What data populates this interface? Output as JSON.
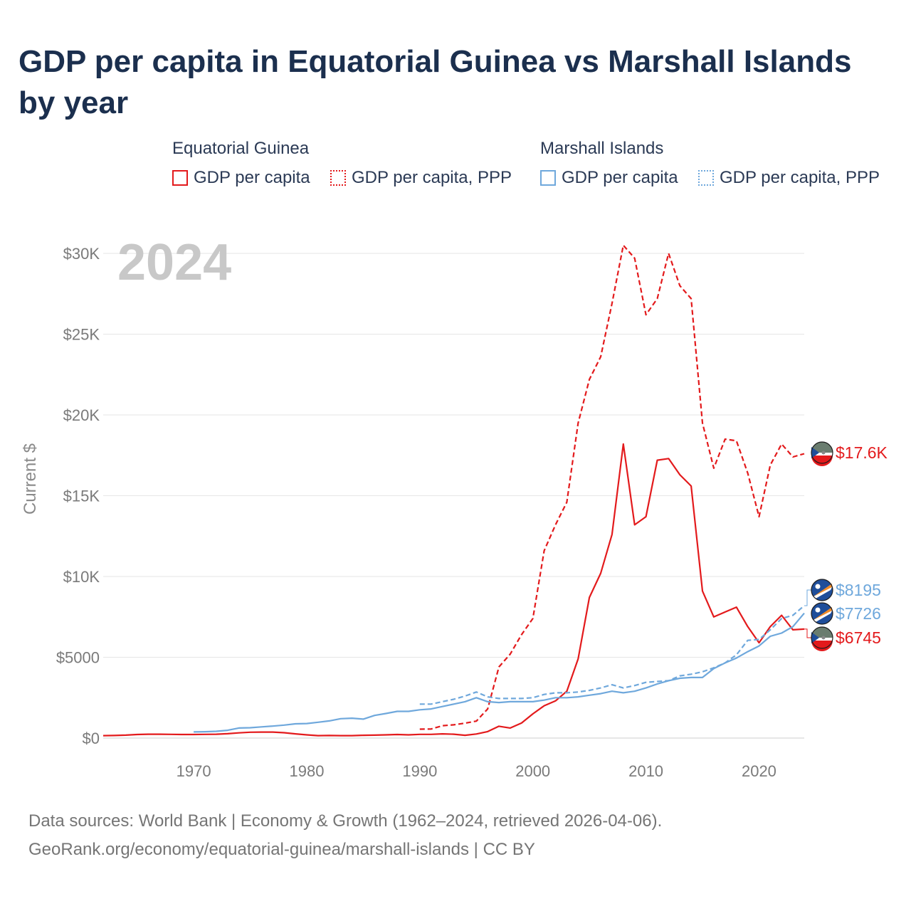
{
  "title": "GDP per capita in Equatorial Guinea vs Marshall Islands by year",
  "legend": {
    "groups": [
      {
        "name": "Equatorial Guinea",
        "items": [
          {
            "label": "GDP per capita",
            "color": "#e31a1c",
            "style": "solid"
          },
          {
            "label": "GDP per capita, PPP",
            "color": "#e31a1c",
            "style": "dotted"
          }
        ]
      },
      {
        "name": "Marshall Islands",
        "items": [
          {
            "label": "GDP per capita",
            "color": "#6fa8dc",
            "style": "solid"
          },
          {
            "label": "GDP per capita, PPP",
            "color": "#6fa8dc",
            "style": "dotted"
          }
        ]
      }
    ]
  },
  "year_watermark": "2024",
  "footer": {
    "line1": "Data sources: World Bank | Economy & Growth (1962–2024, retrieved 2026-04-06).",
    "line2": "GeoRank.org/economy/equatorial-guinea/marshall-islands | CC BY"
  },
  "chart_data": {
    "type": "line",
    "ylabel": "Current $",
    "xlabel": "",
    "xlim": [
      1962,
      2024
    ],
    "ylim": [
      0,
      31000
    ],
    "yticks": [
      0,
      5000,
      10000,
      15000,
      20000,
      25000,
      30000
    ],
    "ytick_labels": [
      "$0",
      "$5000",
      "$10K",
      "$15K",
      "$20K",
      "$25K",
      "$30K"
    ],
    "xticks": [
      1970,
      1980,
      1990,
      2000,
      2010,
      2020
    ],
    "xtick_labels": [
      "1970",
      "1980",
      "1990",
      "2000",
      "2010",
      "2020"
    ],
    "grid": true,
    "series": [
      {
        "name": "Equatorial Guinea GDP per capita",
        "color": "#e31a1c",
        "style": "solid",
        "end_label": "$6745",
        "points": [
          [
            1962,
            150
          ],
          [
            1963,
            160
          ],
          [
            1964,
            180
          ],
          [
            1965,
            220
          ],
          [
            1966,
            240
          ],
          [
            1967,
            240
          ],
          [
            1968,
            230
          ],
          [
            1969,
            220
          ],
          [
            1970,
            220
          ],
          [
            1971,
            230
          ],
          [
            1972,
            240
          ],
          [
            1973,
            270
          ],
          [
            1974,
            320
          ],
          [
            1975,
            360
          ],
          [
            1976,
            370
          ],
          [
            1977,
            370
          ],
          [
            1978,
            330
          ],
          [
            1979,
            260
          ],
          [
            1980,
            200
          ],
          [
            1981,
            150
          ],
          [
            1982,
            160
          ],
          [
            1983,
            150
          ],
          [
            1984,
            150
          ],
          [
            1985,
            170
          ],
          [
            1986,
            180
          ],
          [
            1987,
            200
          ],
          [
            1988,
            220
          ],
          [
            1989,
            200
          ],
          [
            1990,
            230
          ],
          [
            1991,
            230
          ],
          [
            1992,
            260
          ],
          [
            1993,
            240
          ],
          [
            1994,
            170
          ],
          [
            1995,
            250
          ],
          [
            1996,
            400
          ],
          [
            1997,
            730
          ],
          [
            1998,
            620
          ],
          [
            1999,
            930
          ],
          [
            2000,
            1500
          ],
          [
            2001,
            2000
          ],
          [
            2002,
            2300
          ],
          [
            2003,
            2900
          ],
          [
            2004,
            4900
          ],
          [
            2005,
            8700
          ],
          [
            2006,
            10200
          ],
          [
            2007,
            12600
          ],
          [
            2008,
            18200
          ],
          [
            2009,
            13200
          ],
          [
            2010,
            13700
          ],
          [
            2011,
            17200
          ],
          [
            2012,
            17300
          ],
          [
            2013,
            16300
          ],
          [
            2014,
            15600
          ],
          [
            2015,
            9100
          ],
          [
            2016,
            7500
          ],
          [
            2017,
            7800
          ],
          [
            2018,
            8100
          ],
          [
            2019,
            6900
          ],
          [
            2020,
            5900
          ],
          [
            2021,
            6900
          ],
          [
            2022,
            7600
          ],
          [
            2023,
            6700
          ],
          [
            2024,
            6745
          ]
        ]
      },
      {
        "name": "Equatorial Guinea GDP per capita, PPP",
        "color": "#e31a1c",
        "style": "dashed",
        "end_label": "$17.6K",
        "points": [
          [
            1990,
            550
          ],
          [
            1991,
            560
          ],
          [
            1992,
            760
          ],
          [
            1993,
            820
          ],
          [
            1994,
            920
          ],
          [
            1995,
            1050
          ],
          [
            1996,
            1800
          ],
          [
            1997,
            4400
          ],
          [
            1998,
            5200
          ],
          [
            1999,
            6400
          ],
          [
            2000,
            7400
          ],
          [
            2001,
            11600
          ],
          [
            2002,
            13200
          ],
          [
            2003,
            14600
          ],
          [
            2004,
            19500
          ],
          [
            2005,
            22200
          ],
          [
            2006,
            23600
          ],
          [
            2007,
            26900
          ],
          [
            2008,
            30500
          ],
          [
            2009,
            29700
          ],
          [
            2010,
            26200
          ],
          [
            2011,
            27200
          ],
          [
            2012,
            30000
          ],
          [
            2013,
            28000
          ],
          [
            2014,
            27200
          ],
          [
            2015,
            19500
          ],
          [
            2016,
            16700
          ],
          [
            2017,
            18500
          ],
          [
            2018,
            18400
          ],
          [
            2019,
            16400
          ],
          [
            2020,
            13700
          ],
          [
            2021,
            16900
          ],
          [
            2022,
            18200
          ],
          [
            2023,
            17400
          ],
          [
            2024,
            17600
          ]
        ]
      },
      {
        "name": "Marshall Islands GDP per capita",
        "color": "#6fa8dc",
        "style": "solid",
        "end_label": "$7726",
        "points": [
          [
            1970,
            380
          ],
          [
            1971,
            390
          ],
          [
            1972,
            420
          ],
          [
            1973,
            480
          ],
          [
            1974,
            620
          ],
          [
            1975,
            640
          ],
          [
            1976,
            690
          ],
          [
            1977,
            740
          ],
          [
            1978,
            800
          ],
          [
            1979,
            880
          ],
          [
            1980,
            900
          ],
          [
            1981,
            980
          ],
          [
            1982,
            1060
          ],
          [
            1983,
            1200
          ],
          [
            1984,
            1230
          ],
          [
            1985,
            1170
          ],
          [
            1986,
            1400
          ],
          [
            1987,
            1520
          ],
          [
            1988,
            1650
          ],
          [
            1989,
            1650
          ],
          [
            1990,
            1750
          ],
          [
            1991,
            1800
          ],
          [
            1992,
            1950
          ],
          [
            1993,
            2100
          ],
          [
            1994,
            2250
          ],
          [
            1995,
            2500
          ],
          [
            1996,
            2250
          ],
          [
            1997,
            2200
          ],
          [
            1998,
            2250
          ],
          [
            1999,
            2250
          ],
          [
            2000,
            2250
          ],
          [
            2001,
            2350
          ],
          [
            2002,
            2500
          ],
          [
            2003,
            2500
          ],
          [
            2004,
            2550
          ],
          [
            2005,
            2650
          ],
          [
            2006,
            2750
          ],
          [
            2007,
            2900
          ],
          [
            2008,
            2800
          ],
          [
            2009,
            2900
          ],
          [
            2010,
            3100
          ],
          [
            2011,
            3350
          ],
          [
            2012,
            3550
          ],
          [
            2013,
            3700
          ],
          [
            2014,
            3750
          ],
          [
            2015,
            3750
          ],
          [
            2016,
            4300
          ],
          [
            2017,
            4650
          ],
          [
            2018,
            4950
          ],
          [
            2019,
            5350
          ],
          [
            2020,
            5700
          ],
          [
            2021,
            6300
          ],
          [
            2022,
            6500
          ],
          [
            2023,
            6900
          ],
          [
            2024,
            7726
          ]
        ]
      },
      {
        "name": "Marshall Islands GDP per capita, PPP",
        "color": "#6fa8dc",
        "style": "dashed",
        "end_label": "$8195",
        "points": [
          [
            1990,
            2100
          ],
          [
            1991,
            2100
          ],
          [
            1992,
            2250
          ],
          [
            1993,
            2400
          ],
          [
            1994,
            2600
          ],
          [
            1995,
            2850
          ],
          [
            1996,
            2550
          ],
          [
            1997,
            2450
          ],
          [
            1998,
            2450
          ],
          [
            1999,
            2450
          ],
          [
            2000,
            2500
          ],
          [
            2001,
            2700
          ],
          [
            2002,
            2800
          ],
          [
            2003,
            2800
          ],
          [
            2004,
            2850
          ],
          [
            2005,
            2950
          ],
          [
            2006,
            3100
          ],
          [
            2007,
            3300
          ],
          [
            2008,
            3100
          ],
          [
            2009,
            3250
          ],
          [
            2010,
            3450
          ],
          [
            2011,
            3500
          ],
          [
            2012,
            3550
          ],
          [
            2013,
            3850
          ],
          [
            2014,
            3950
          ],
          [
            2015,
            4100
          ],
          [
            2016,
            4350
          ],
          [
            2017,
            4650
          ],
          [
            2018,
            5150
          ],
          [
            2019,
            6050
          ],
          [
            2020,
            6100
          ],
          [
            2021,
            6700
          ],
          [
            2022,
            7400
          ],
          [
            2023,
            7600
          ],
          [
            2024,
            8195
          ]
        ]
      }
    ]
  }
}
